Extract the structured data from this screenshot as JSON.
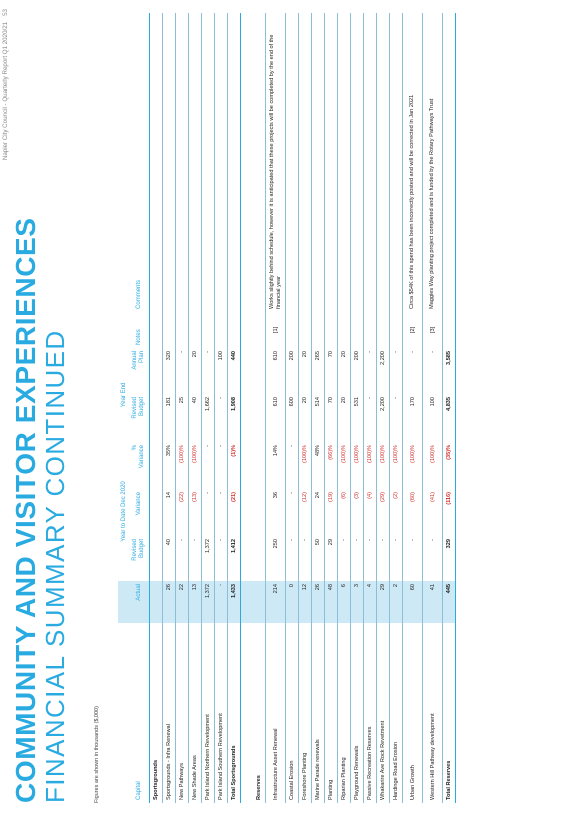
{
  "footer": {
    "text": "Napier City Council - Quarterly Report Q1 2020/21",
    "page_number": "53"
  },
  "title": {
    "line1": "COMMUNITY AND VISITOR EXPERIENCES",
    "line2": "FINANCIAL SUMMARY CONTINUED"
  },
  "figures_note": "Figures are shown in thousands ($,000)",
  "headers": {
    "ytd_group": "Year to Date Dec 2020",
    "ye_group": "Year End",
    "capital": "Capital",
    "actual": "Actual",
    "revised_budget_1": "Revised",
    "revised_budget_2": "Budget",
    "variance": "Variance",
    "pct_1": "%",
    "pct_2": "Variance",
    "ye_revised_1": "Revised",
    "ye_revised_2": "Budget",
    "annual_1": "Annual",
    "annual_2": "Plan",
    "notes": "Notes",
    "comments": "Comments"
  },
  "sections": [
    {
      "title": "Sportsgrounds",
      "rows": [
        {
          "name": "Sportsgrounds - Infra Renewal",
          "actual": "26",
          "revised": "40",
          "variance": "14",
          "pct": "35%",
          "ye_revised": "181",
          "annual": "320",
          "notes": "",
          "comment": ""
        },
        {
          "name": "New Pathways",
          "actual": "22",
          "revised": "-",
          "variance": "(22)",
          "pct": "(100)%",
          "ye_revised": "25",
          "annual": "-",
          "notes": "",
          "comment": ""
        },
        {
          "name": "New Shade Areas",
          "actual": "13",
          "revised": "-",
          "variance": "(13)",
          "pct": "(100)%",
          "ye_revised": "40",
          "annual": "20",
          "notes": "",
          "comment": ""
        },
        {
          "name": "Park Island Northern Revelopment",
          "actual": "1,372",
          "revised": "1,372",
          "variance": "-",
          "pct": "-",
          "ye_revised": "1,662",
          "annual": "-",
          "notes": "",
          "comment": ""
        },
        {
          "name": "Park Island Southern Revelopment",
          "actual": "-",
          "revised": "-",
          "variance": "-",
          "pct": "-",
          "ye_revised": "-",
          "annual": "100",
          "notes": "",
          "comment": ""
        }
      ],
      "total": {
        "name": "Total Sportsgrounds",
        "actual": "1,433",
        "revised": "1,412",
        "variance": "(21)",
        "pct": "(1)%",
        "ye_revised": "1,908",
        "annual": "440"
      }
    },
    {
      "title": "Reserves",
      "rows": [
        {
          "name": "Infrastructure Asset Renewal",
          "actual": "214",
          "revised": "250",
          "variance": "36",
          "pct": "14%",
          "ye_revised": "610",
          "annual": "610",
          "notes": "[1]",
          "comment": "Works slightly behind schedule, however it is anticipated that these projects will be completed by the end of the financial year"
        },
        {
          "name": "Coastal Erosion",
          "actual": "0",
          "revised": "-",
          "variance": "-",
          "pct": "-",
          "ye_revised": "600",
          "annual": "200",
          "notes": "",
          "comment": ""
        },
        {
          "name": "Foreshore Planting",
          "actual": "12",
          "revised": "-",
          "variance": "(12)",
          "pct": "(100)%",
          "ye_revised": "20",
          "annual": "20",
          "notes": "",
          "comment": ""
        },
        {
          "name": "Marine Parade renewals",
          "actual": "26",
          "revised": "50",
          "variance": "24",
          "pct": "48%",
          "ye_revised": "514",
          "annual": "265",
          "notes": "",
          "comment": ""
        },
        {
          "name": "Planting",
          "actual": "48",
          "revised": "29",
          "variance": "(19)",
          "pct": "(66)%",
          "ye_revised": "70",
          "annual": "70",
          "notes": "",
          "comment": ""
        },
        {
          "name": "Riparian Planting",
          "actual": "6",
          "revised": "-",
          "variance": "(6)",
          "pct": "(100)%",
          "ye_revised": "20",
          "annual": "20",
          "notes": "",
          "comment": ""
        },
        {
          "name": "Playground Renewals",
          "actual": "3",
          "revised": "-",
          "variance": "(3)",
          "pct": "(100)%",
          "ye_revised": "531",
          "annual": "200",
          "notes": "",
          "comment": ""
        },
        {
          "name": "Passive Recreation Reserves",
          "actual": "4",
          "revised": "-",
          "variance": "(4)",
          "pct": "(100)%",
          "ye_revised": "-",
          "annual": "-",
          "notes": "",
          "comment": ""
        },
        {
          "name": "Whakarire Ave Rock Revetment",
          "actual": "29",
          "revised": "-",
          "variance": "(29)",
          "pct": "(100)%",
          "ye_revised": "2,200",
          "annual": "2,200",
          "notes": "",
          "comment": ""
        },
        {
          "name": "Hardinge Road Erosion",
          "actual": "2",
          "revised": "-",
          "variance": "(2)",
          "pct": "(100)%",
          "ye_revised": "-",
          "annual": "-",
          "notes": "",
          "comment": ""
        },
        {
          "name": "Urban Growth",
          "actual": "60",
          "revised": "-",
          "variance": "(60)",
          "pct": "(100)%",
          "ye_revised": "170",
          "annual": "-",
          "notes": "[2]",
          "comment": "Circa $54K of this spend has been incorrectly posted and will be corrected in Jan 2021"
        },
        {
          "name": "Western Hill Pathway development",
          "actual": "41",
          "revised": "-",
          "variance": "(41)",
          "pct": "(100)%",
          "ye_revised": "100",
          "annual": "-",
          "notes": "[3]",
          "comment": "Maggies Way planting project completed and is funded by the Rotary Pathways Trust"
        }
      ],
      "total": {
        "name": "Total Reserves",
        "actual": "445",
        "revised": "329",
        "variance": "(116)",
        "pct": "(35)%",
        "ye_revised": "4,835",
        "annual": "3,585"
      }
    }
  ],
  "colors": {
    "accent": "#29abe2",
    "highlight": "#cde9f6",
    "negative": "#d0302e"
  }
}
